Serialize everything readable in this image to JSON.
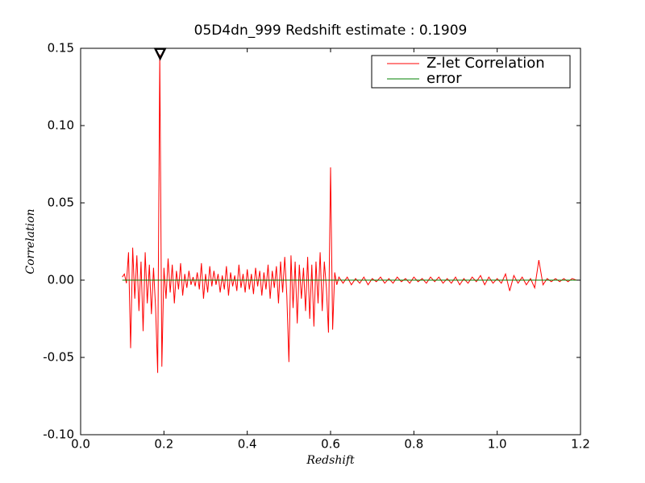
{
  "chart_data": {
    "type": "line",
    "title": "05D4dn_999 Redshift estimate : 0.1909",
    "x_label": "Redshift",
    "y_label": "Correlation",
    "xlim": [
      0,
      1.2
    ],
    "ylim": [
      -0.1,
      0.15
    ],
    "xticks": [
      {
        "value": 0,
        "label": "0.0"
      },
      0.2,
      0.4,
      0.6,
      0.8,
      {
        "value": 1,
        "label": "1.0"
      },
      1.2
    ],
    "yticks": [
      {
        "value": -0.1,
        "label": "-0.10"
      },
      -0.05,
      {
        "value": 0,
        "label": "0.00"
      },
      0.05,
      {
        "value": 0.1,
        "label": "0.10"
      },
      0.15
    ],
    "legend": "upper right",
    "grid": false,
    "marker": {
      "x": 0.1909,
      "y": 0.146
    },
    "series": [
      {
        "name": "Z-let Correlation",
        "color": "#ff0000",
        "x": [
          0.1,
          0.105,
          0.11,
          0.115,
          0.12,
          0.125,
          0.13,
          0.135,
          0.14,
          0.145,
          0.15,
          0.155,
          0.16,
          0.165,
          0.17,
          0.175,
          0.18,
          0.185,
          0.19,
          0.195,
          0.2,
          0.205,
          0.21,
          0.215,
          0.22,
          0.225,
          0.23,
          0.235,
          0.24,
          0.245,
          0.25,
          0.255,
          0.26,
          0.265,
          0.27,
          0.275,
          0.28,
          0.285,
          0.29,
          0.295,
          0.3,
          0.305,
          0.31,
          0.315,
          0.32,
          0.325,
          0.33,
          0.335,
          0.34,
          0.345,
          0.35,
          0.355,
          0.36,
          0.365,
          0.37,
          0.375,
          0.38,
          0.385,
          0.39,
          0.395,
          0.4,
          0.405,
          0.41,
          0.415,
          0.42,
          0.425,
          0.43,
          0.435,
          0.44,
          0.445,
          0.45,
          0.455,
          0.46,
          0.465,
          0.47,
          0.475,
          0.48,
          0.485,
          0.49,
          0.495,
          0.5,
          0.505,
          0.51,
          0.515,
          0.52,
          0.525,
          0.53,
          0.535,
          0.54,
          0.545,
          0.55,
          0.555,
          0.56,
          0.565,
          0.57,
          0.575,
          0.58,
          0.585,
          0.59,
          0.595,
          0.6,
          0.605,
          0.61,
          0.615,
          0.62,
          0.63,
          0.64,
          0.65,
          0.66,
          0.67,
          0.68,
          0.69,
          0.7,
          0.71,
          0.72,
          0.73,
          0.74,
          0.75,
          0.76,
          0.77,
          0.78,
          0.79,
          0.8,
          0.81,
          0.82,
          0.83,
          0.84,
          0.85,
          0.86,
          0.87,
          0.88,
          0.89,
          0.9,
          0.91,
          0.92,
          0.93,
          0.94,
          0.95,
          0.96,
          0.97,
          0.98,
          0.99,
          1.0,
          1.01,
          1.02,
          1.03,
          1.04,
          1.05,
          1.06,
          1.07,
          1.08,
          1.09,
          1.1,
          1.11,
          1.12,
          1.13,
          1.14,
          1.15,
          1.16,
          1.17,
          1.18,
          1.19,
          1.2
        ],
        "values": [
          0.002,
          0.004,
          -0.002,
          0.018,
          -0.044,
          0.021,
          -0.012,
          0.016,
          -0.02,
          0.012,
          -0.033,
          0.018,
          -0.015,
          0.01,
          -0.022,
          0.008,
          -0.018,
          -0.06,
          0.146,
          -0.056,
          0.008,
          -0.012,
          0.014,
          -0.008,
          0.01,
          -0.015,
          0.006,
          -0.006,
          0.011,
          -0.01,
          0.004,
          -0.005,
          0.006,
          -0.003,
          0.002,
          -0.004,
          0.005,
          -0.006,
          0.011,
          -0.012,
          0.004,
          -0.008,
          0.009,
          -0.004,
          0.006,
          -0.003,
          0.004,
          -0.008,
          0.003,
          -0.006,
          0.009,
          -0.01,
          0.005,
          -0.004,
          0.003,
          -0.007,
          0.01,
          -0.005,
          0.004,
          -0.008,
          0.007,
          -0.006,
          0.004,
          -0.009,
          0.008,
          -0.004,
          0.006,
          -0.01,
          0.005,
          -0.006,
          0.01,
          -0.012,
          0.006,
          -0.005,
          0.009,
          -0.015,
          0.012,
          -0.008,
          0.015,
          -0.01,
          -0.053,
          0.016,
          -0.018,
          0.012,
          -0.028,
          0.01,
          -0.012,
          0.008,
          -0.02,
          0.015,
          -0.025,
          0.01,
          -0.03,
          0.012,
          -0.015,
          0.018,
          -0.02,
          0.012,
          -0.005,
          -0.034,
          0.073,
          -0.032,
          0.005,
          -0.003,
          0.002,
          -0.002,
          0.002,
          -0.003,
          0.001,
          -0.002,
          0.002,
          -0.003,
          0.001,
          -0.001,
          0.002,
          -0.002,
          0.001,
          -0.002,
          0.002,
          -0.001,
          0.001,
          -0.002,
          0.002,
          -0.001,
          0.001,
          -0.002,
          0.002,
          -0.001,
          0.002,
          -0.002,
          0.001,
          -0.002,
          0.002,
          -0.003,
          0.001,
          -0.002,
          0.002,
          -0.001,
          0.003,
          -0.003,
          0.002,
          -0.002,
          0.001,
          -0.002,
          0.004,
          -0.007,
          0.003,
          -0.002,
          0.002,
          -0.003,
          0.001,
          -0.005,
          0.013,
          -0.003,
          0.001,
          -0.001,
          0.001,
          -0.001,
          0.001,
          -0.001,
          0.001,
          0.0,
          0.0
        ]
      },
      {
        "name": "error",
        "color": "#008000",
        "x": [
          0.1,
          1.2
        ],
        "values": [
          0,
          0
        ]
      }
    ]
  }
}
